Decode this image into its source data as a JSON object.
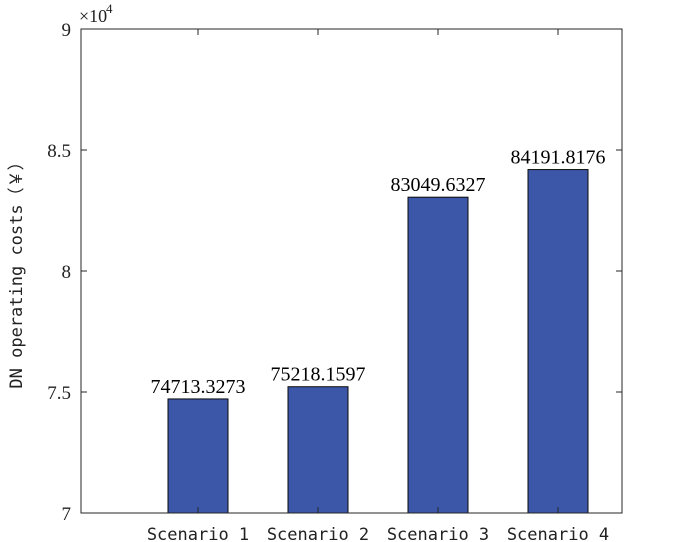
{
  "chart_data": {
    "type": "bar",
    "categories": [
      "Scenario 1",
      "Scenario 2",
      "Scenario 3",
      "Scenario 4"
    ],
    "values": [
      74713.3273,
      75218.1597,
      83049.6327,
      84191.8176
    ],
    "data_labels": [
      "74713.3273",
      "75218.1597",
      "83049.6327",
      "84191.8176"
    ],
    "title": "",
    "xlabel": "",
    "ylabel": "DN operating costs（￥）",
    "ylim": [
      70000,
      90000
    ],
    "yticks": [
      70000,
      75000,
      80000,
      85000,
      90000
    ],
    "ytick_labels": [
      "7",
      "7.5",
      "8",
      "8.5",
      "9"
    ],
    "y_exponent_label": "×10",
    "y_exponent_power": "4",
    "grid": false,
    "legend": "none",
    "colors": {
      "bar": "#3c56a8",
      "bar_edge": "#0a0a0a",
      "axis": "#262626"
    }
  }
}
